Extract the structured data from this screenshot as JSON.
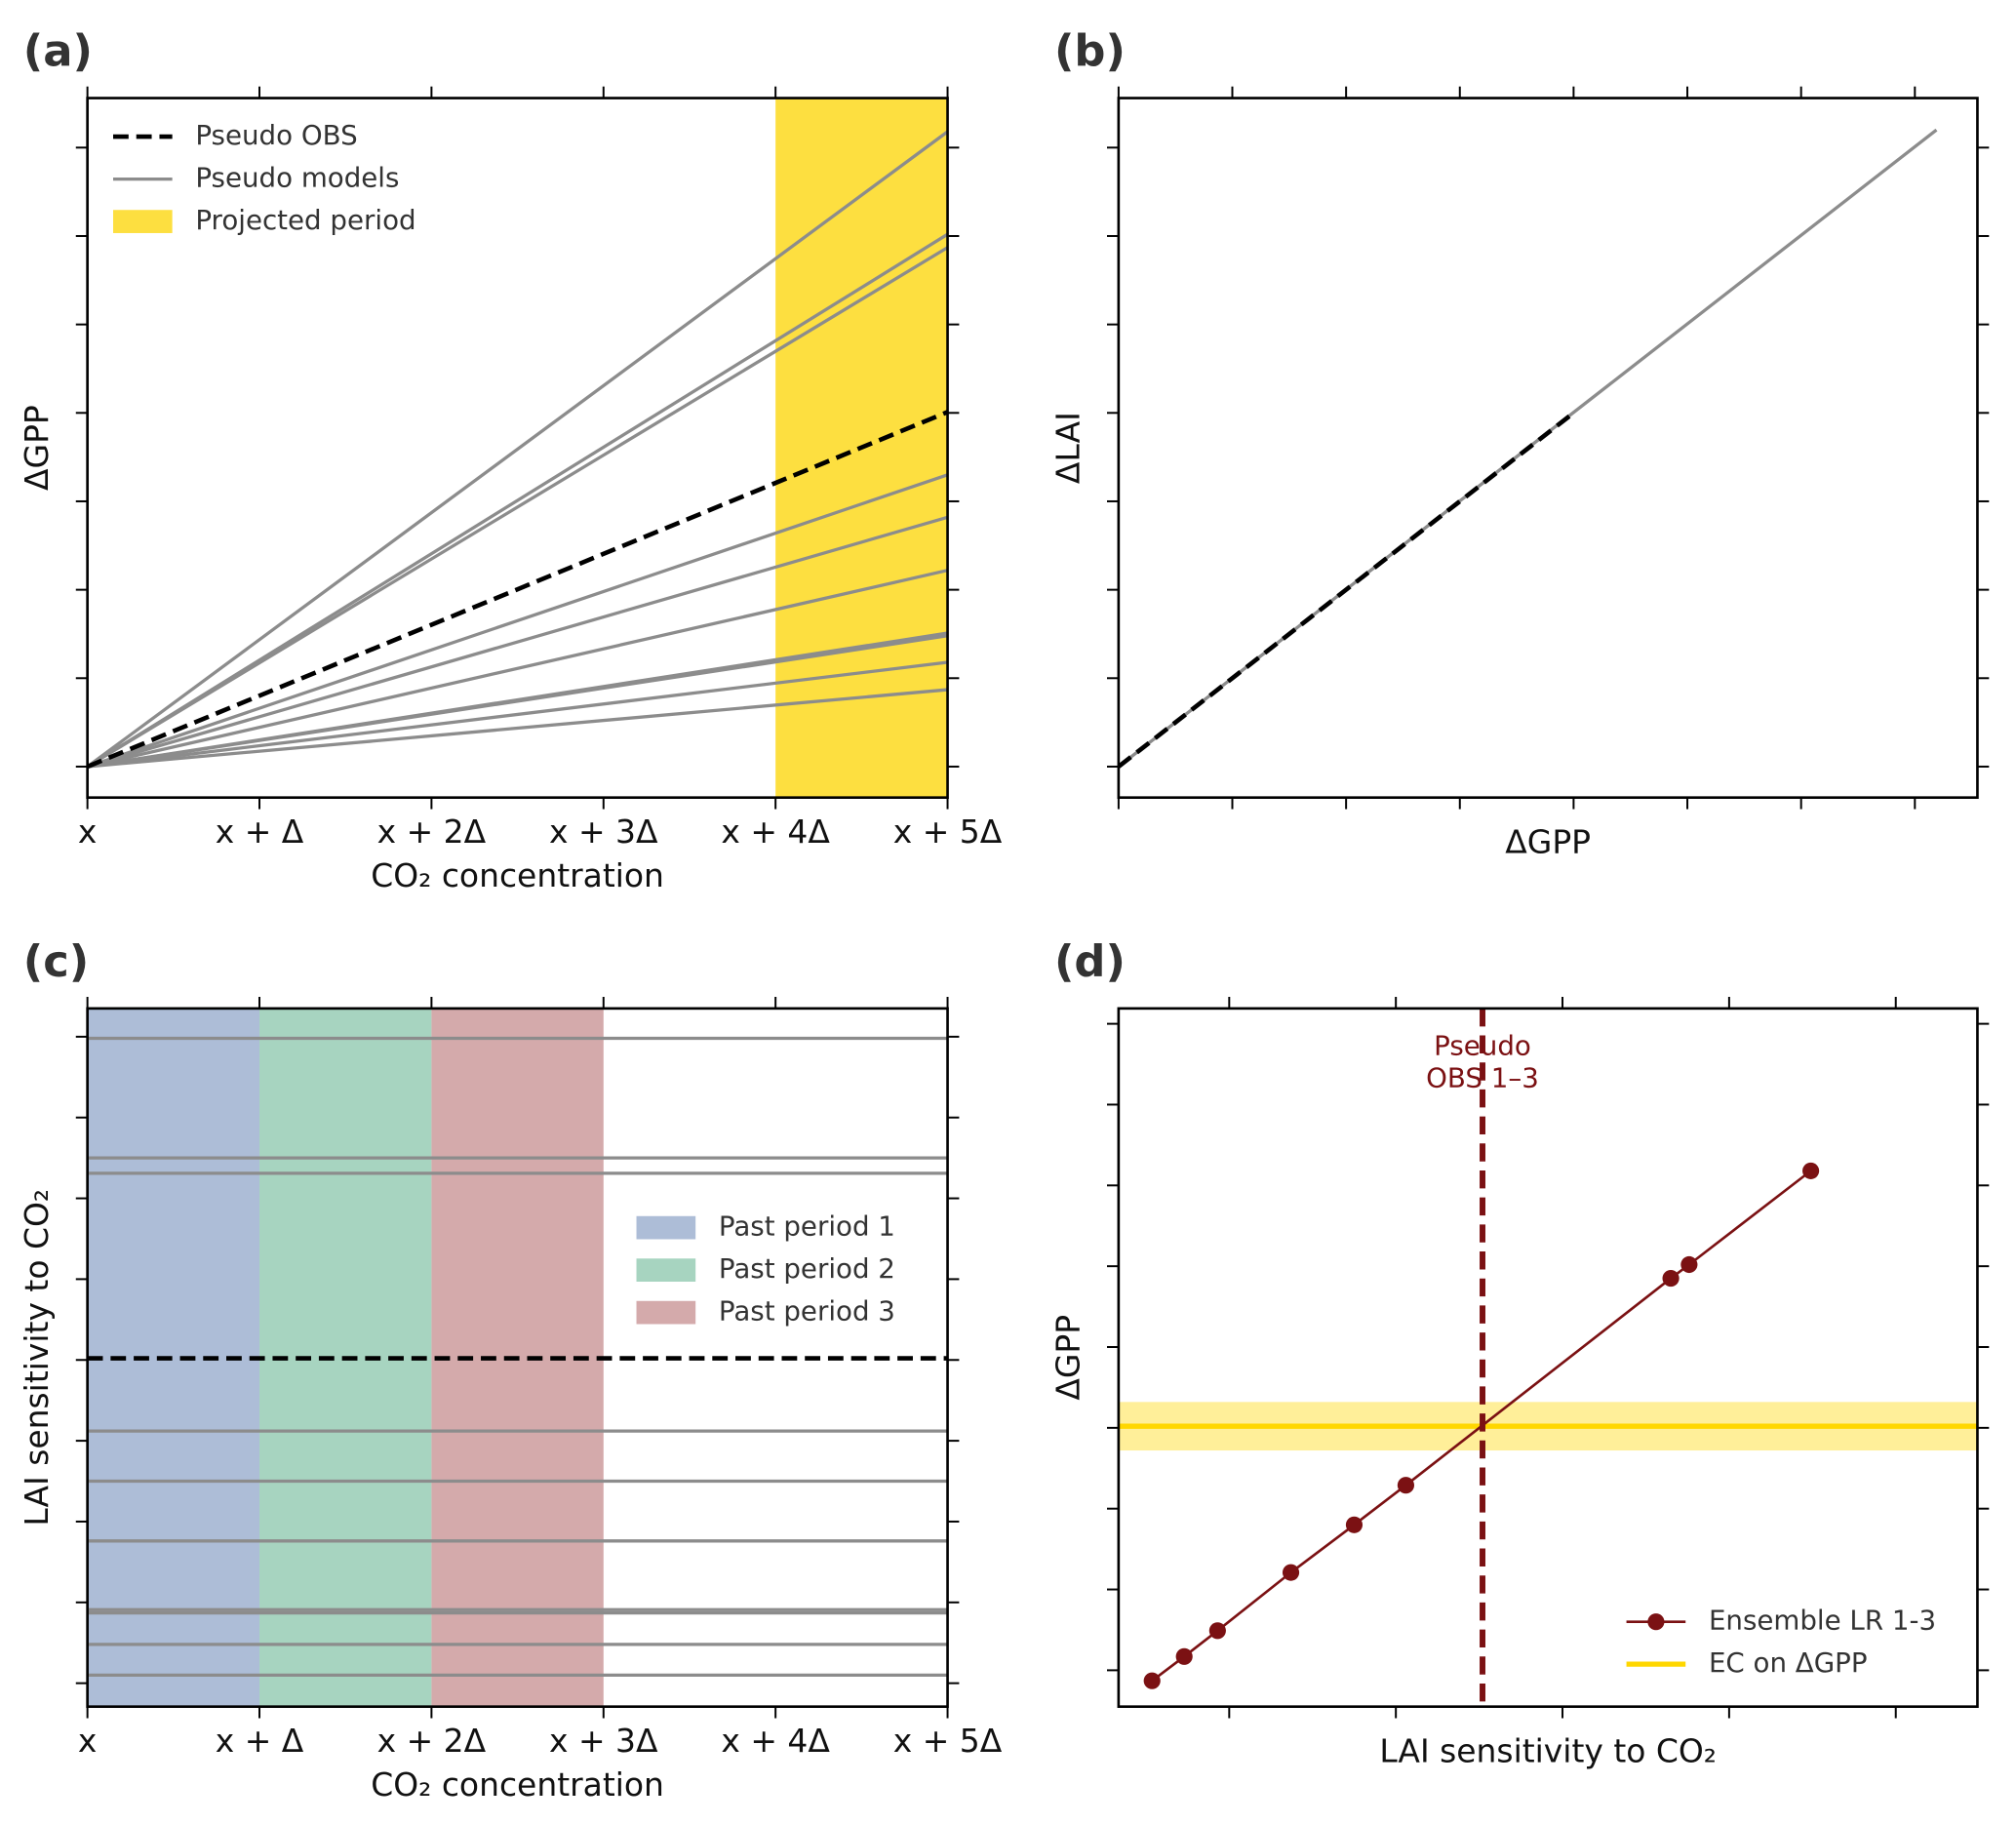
{
  "chart_data": [
    {
      "type": "line",
      "panel_label": "(a)",
      "xlabel": "CO₂ concentration",
      "ylabel": "ΔGPP",
      "xlim": [
        0,
        5
      ],
      "ylim": [
        -0.35,
        7.56
      ],
      "xticks": [
        {
          "value": 0,
          "label": "x"
        },
        {
          "value": 1,
          "label": "x + Δ"
        },
        {
          "value": 2,
          "label": "x + 2Δ"
        },
        {
          "value": 3,
          "label": "x + 3Δ"
        },
        {
          "value": 4,
          "label": "x + 4Δ"
        },
        {
          "value": 5,
          "label": "x + 5Δ"
        }
      ],
      "xtick_labels": true,
      "yticks": [
        0,
        1,
        2,
        3,
        4,
        5,
        6,
        7
      ],
      "ytick_labels": false,
      "legend": "upper left",
      "series": [
        {
          "name": "Pseudo OBS",
          "color": "#000000",
          "dashed": true,
          "x": [
            0,
            5
          ],
          "values": [
            0,
            4.01
          ]
        },
        {
          "name": "Pseudo models",
          "color": "#8c8c8c",
          "dashed": false,
          "x": [
            0,
            5
          ],
          "values": [
            [
              0,
              7.18
            ],
            [
              0,
              6.02
            ],
            [
              0,
              5.87
            ],
            [
              0,
              3.3
            ],
            [
              0,
              2.82
            ],
            [
              0,
              2.22
            ],
            [
              0,
              1.51
            ],
            [
              0,
              1.48
            ],
            [
              0,
              1.18
            ],
            [
              0,
              0.87
            ]
          ]
        }
      ],
      "spans": [
        {
          "name": "Projected period",
          "color": "#fddf40",
          "x": [
            4,
            5
          ]
        }
      ]
    },
    {
      "type": "line",
      "panel_label": "(b)",
      "xlabel": "ΔGPP",
      "ylabel": "ΔLAI",
      "xlim": [
        0,
        7.55
      ],
      "ylim": [
        -0.35,
        7.56
      ],
      "xticks": [
        0,
        1,
        2,
        3,
        4,
        5,
        6,
        7
      ],
      "xtick_labels": false,
      "yticks": [
        0,
        1,
        2,
        3,
        4,
        5,
        6,
        7
      ],
      "ytick_labels": false,
      "series": [
        {
          "color": "#000000",
          "dashed": true,
          "x": [
            0,
            4.01
          ],
          "values": [
            0,
            4.01
          ]
        },
        {
          "color": "#8c8c8c",
          "dashed": false,
          "x": [
            0,
            7.19
          ],
          "values": [
            0,
            7.2
          ]
        }
      ]
    },
    {
      "type": "hline",
      "panel_label": "(c)",
      "xlabel": "CO₂ concentration",
      "ylabel": "LAI sensitivity to CO₂",
      "xlim": [
        0,
        5
      ],
      "ylim": [
        -0.29,
        8.35
      ],
      "xticks": [
        {
          "value": 0,
          "label": "x"
        },
        {
          "value": 1,
          "label": "x + Δ"
        },
        {
          "value": 2,
          "label": "x + 2Δ"
        },
        {
          "value": 3,
          "label": "x + 3Δ"
        },
        {
          "value": 4,
          "label": "x + 4Δ"
        },
        {
          "value": 5,
          "label": "x + 5Δ"
        }
      ],
      "xtick_labels": true,
      "yticks": [
        0,
        1,
        2,
        3,
        4,
        5,
        6,
        7,
        8
      ],
      "ytick_labels": false,
      "legend": "center right",
      "series": [
        {
          "color": "#000000",
          "dashed": true,
          "values": [
            4.02
          ]
        },
        {
          "color": "#8c8c8c",
          "dashed": false,
          "values": [
            7.98,
            6.5,
            6.31,
            3.12,
            2.5,
            1.76,
            0.91,
            0.87,
            0.48,
            0.1
          ]
        }
      ],
      "spans": [
        {
          "name": "Past period 1",
          "color": "#adbdd7",
          "x": [
            0,
            1
          ]
        },
        {
          "name": "Past period 2",
          "color": "#a7d4c0",
          "x": [
            1,
            2
          ]
        },
        {
          "name": "Past period 3",
          "color": "#d4aaab",
          "x": [
            2,
            3
          ]
        }
      ]
    },
    {
      "type": "scatter",
      "panel_label": "(d)",
      "xlabel": "LAI sensitivity to CO₂",
      "ylabel": "ΔGPP",
      "xlim": [
        0.336,
        5.49
      ],
      "ylim": [
        -0.45,
        8.19
      ],
      "xticks": [
        1,
        2,
        3,
        4,
        5
      ],
      "xtick_labels": false,
      "yticks": [
        0,
        1,
        2,
        3,
        4,
        5,
        6,
        7,
        8
      ],
      "ytick_labels": false,
      "legend": "lower right",
      "series": [
        {
          "name": "Ensemble LR 1-3",
          "color": "#7b1113",
          "x": [
            0.537,
            0.73,
            0.93,
            1.37,
            1.75,
            2.06,
            3.65,
            3.76,
            4.49
          ],
          "values": [
            -0.13,
            0.17,
            0.49,
            1.21,
            1.8,
            2.29,
            4.85,
            5.02,
            6.18
          ]
        }
      ],
      "vline": {
        "value": 2.52,
        "color": "#7b1113",
        "label": [
          "Pseudo",
          "OBS 1–3"
        ]
      },
      "hband": {
        "name": "EC on ΔGPP",
        "color": "#ffd700",
        "value": 3.02,
        "band": [
          2.72,
          3.32
        ]
      }
    }
  ]
}
